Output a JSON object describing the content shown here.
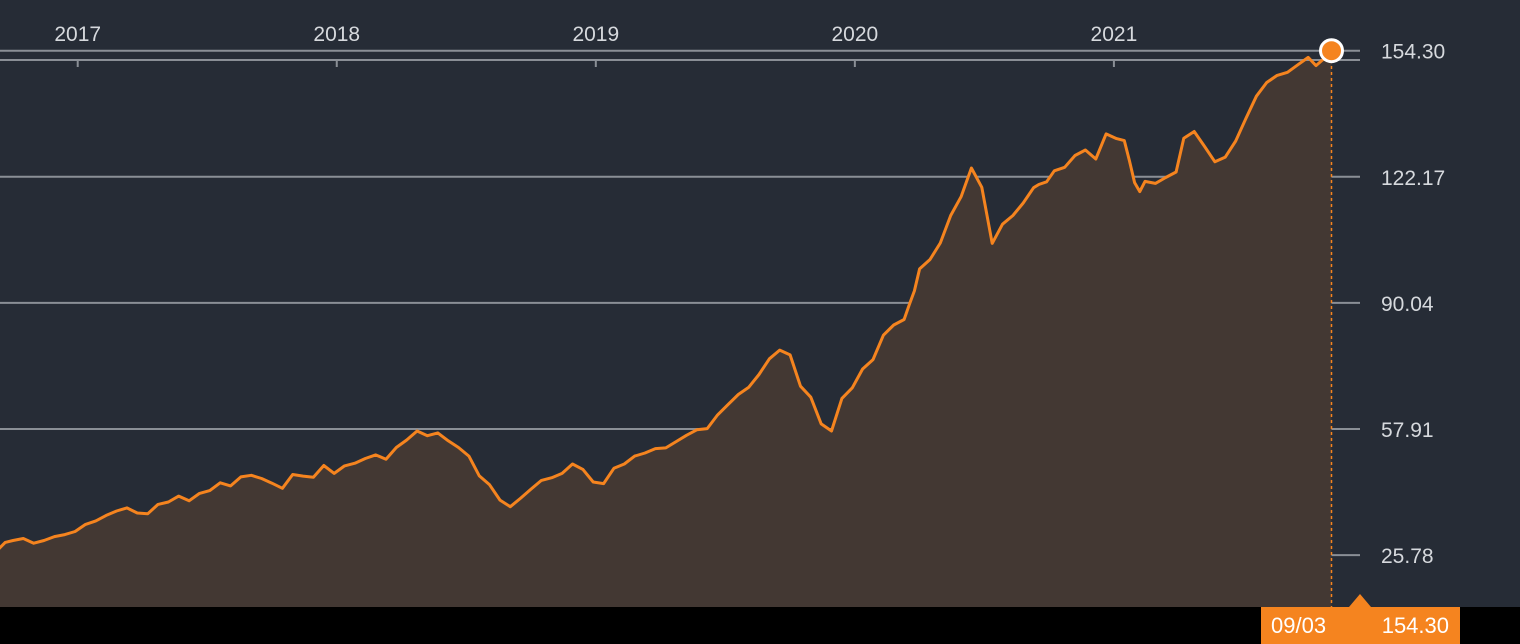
{
  "colors": {
    "background": "#262c36",
    "line": "#f5841f",
    "area_fill": "#433833",
    "grid": "#8a8f96",
    "axis_text": "#d6d9dd",
    "footer": "#000000"
  },
  "crosshair": {
    "date": "09/03",
    "value": "154.30"
  },
  "chart_data": {
    "type": "area",
    "title": "",
    "xlabel": "",
    "ylabel": "",
    "x_tick_labels": [
      "2017",
      "2018",
      "2019",
      "2020",
      "2021"
    ],
    "x_ticks": [
      2017.0,
      2018.0,
      2019.0,
      2020.0,
      2021.0
    ],
    "y_tick_labels": [
      "154.30",
      "122.17",
      "90.04",
      "57.91",
      "25.78"
    ],
    "y_ticks": [
      154.3,
      122.17,
      90.04,
      57.91,
      25.78
    ],
    "xlim": [
      2016.7,
      2021.95
    ],
    "ylim": [
      12.55,
      167.22
    ],
    "grid": "horizontal",
    "legend": "none",
    "last_value": 154.3,
    "x": [
      2016.69,
      2016.72,
      2016.75,
      2016.79,
      2016.83,
      2016.87,
      2016.91,
      2016.95,
      2016.99,
      2017.03,
      2017.07,
      2017.11,
      2017.15,
      2017.19,
      2017.23,
      2017.27,
      2017.31,
      2017.35,
      2017.39,
      2017.43,
      2017.47,
      2017.51,
      2017.55,
      2017.59,
      2017.63,
      2017.67,
      2017.71,
      2017.75,
      2017.79,
      2017.83,
      2017.87,
      2017.91,
      2017.95,
      2017.99,
      2018.03,
      2018.07,
      2018.11,
      2018.15,
      2018.19,
      2018.23,
      2018.27,
      2018.31,
      2018.35,
      2018.39,
      2018.43,
      2018.47,
      2018.51,
      2018.55,
      2018.59,
      2018.63,
      2018.67,
      2018.71,
      2018.75,
      2018.79,
      2018.83,
      2018.87,
      2018.91,
      2018.95,
      2018.99,
      2019.03,
      2019.07,
      2019.11,
      2019.15,
      2019.19,
      2019.23,
      2019.27,
      2019.31,
      2019.35,
      2019.39,
      2019.43,
      2019.47,
      2019.51,
      2019.55,
      2019.59,
      2019.63,
      2019.67,
      2019.71,
      2019.75,
      2019.79,
      2019.83,
      2019.87,
      2019.91,
      2019.95,
      2019.99,
      2020.03,
      2020.07,
      2020.11,
      2020.15,
      2020.19,
      2020.21,
      2020.23,
      2020.25,
      2020.29,
      2020.33,
      2020.37,
      2020.41,
      2020.45,
      2020.49,
      2020.53,
      2020.57,
      2020.61,
      2020.65,
      2020.69,
      2020.71,
      2020.74,
      2020.77,
      2020.81,
      2020.85,
      2020.89,
      2020.93,
      2020.97,
      2021.01,
      2021.04,
      2021.06,
      2021.08,
      2021.1,
      2021.12,
      2021.16,
      2021.2,
      2021.24,
      2021.27,
      2021.31,
      2021.35,
      2021.39,
      2021.43,
      2021.47,
      2021.51,
      2021.55,
      2021.59,
      2021.63,
      2021.67,
      2021.71,
      2021.75,
      2021.78,
      2021.81,
      2021.84
    ],
    "values": [
      27.0,
      29.0,
      29.5,
      30.0,
      28.8,
      29.5,
      30.5,
      31.0,
      31.8,
      33.6,
      34.5,
      35.9,
      37.0,
      37.8,
      36.5,
      36.3,
      38.7,
      39.3,
      40.8,
      39.6,
      41.5,
      42.2,
      44.2,
      43.4,
      45.7,
      46.1,
      45.3,
      44.1,
      42.8,
      46.3,
      45.9,
      45.6,
      48.6,
      46.6,
      48.5,
      49.2,
      50.4,
      51.3,
      50.2,
      53.2,
      55.1,
      57.4,
      56.2,
      56.9,
      54.9,
      53.2,
      51.0,
      46.0,
      43.7,
      39.8,
      38.1,
      40.3,
      42.6,
      44.8,
      45.5,
      46.6,
      49.0,
      47.6,
      44.4,
      44.0,
      47.9,
      49.0,
      51.0,
      51.8,
      52.9,
      53.1,
      54.7,
      56.3,
      57.7,
      58.0,
      61.5,
      64.1,
      66.7,
      68.5,
      71.8,
      75.8,
      78.0,
      76.8,
      68.8,
      66.0,
      59.2,
      57.4,
      65.7,
      68.4,
      73.2,
      75.6,
      81.8,
      84.4,
      85.8,
      89.6,
      93.1,
      98.7,
      101.1,
      105.3,
      112.3,
      117.1,
      124.4,
      119.5,
      105.2,
      110.1,
      112.3,
      115.5,
      119.4,
      120.2,
      120.9,
      123.7,
      124.6,
      127.6,
      129.0,
      126.7,
      133.1,
      131.9,
      131.4,
      126.3,
      120.7,
      118.4,
      121.0,
      120.5,
      122.0,
      123.4,
      132.0,
      133.7,
      129.9,
      126.0,
      127.2,
      131.3,
      137.1,
      142.7,
      146.2,
      148.0,
      148.8,
      150.7,
      152.6,
      150.5,
      152.2,
      154.3
    ]
  }
}
